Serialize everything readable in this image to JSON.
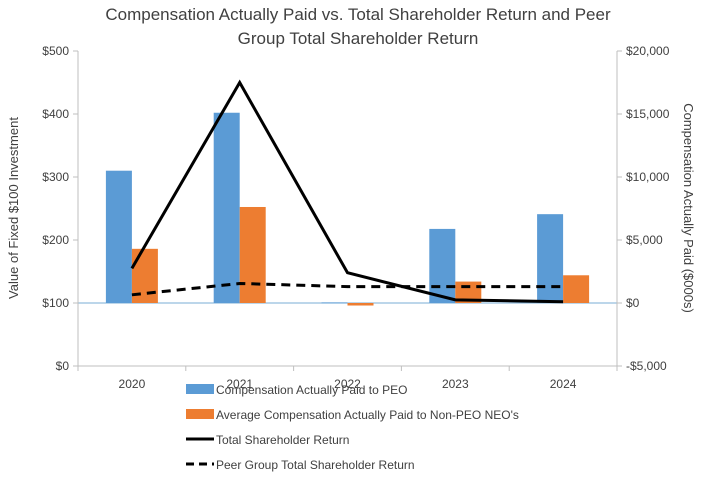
{
  "chart_data": {
    "type": "bar",
    "title": "Compensation Actually Paid vs. Total Shareholder Return and Peer Group Total Shareholder Return",
    "title_lines": [
      "Compensation Actually Paid vs. Total Shareholder Return and Peer",
      "Group Total Shareholder Return"
    ],
    "categories": [
      "2020",
      "2021",
      "2022",
      "2023",
      "2024"
    ],
    "y_left": {
      "label": "Value of Fixed $100 Investment",
      "lim": [
        0,
        500
      ],
      "ticks": [
        0,
        100,
        200,
        300,
        400,
        500
      ],
      "tick_labels": [
        "$0",
        "$100",
        "$200",
        "$300",
        "$400",
        "$500"
      ]
    },
    "y_right": {
      "label": "Compensation Actually Paid ($000s)",
      "lim": [
        -5000,
        20000
      ],
      "ticks": [
        -5000,
        0,
        5000,
        10000,
        15000,
        20000
      ],
      "tick_labels": [
        "-$5,000",
        "$0",
        "$5,000",
        "$10,000",
        "$15,000",
        "$20,000"
      ]
    },
    "series": [
      {
        "name": "Compensation Actually Paid to PEO",
        "kind": "bar",
        "axis": "right",
        "color": "#5B9BD5",
        "values": [
          10500,
          15100,
          50,
          5880,
          7050
        ]
      },
      {
        "name": "Average Compensation Actually Paid to Non-PEO NEO's",
        "kind": "bar",
        "axis": "right",
        "color": "#ED7D31",
        "values": [
          4300,
          7620,
          -200,
          1700,
          2200
        ]
      },
      {
        "name": "Total Shareholder Return",
        "kind": "line",
        "axis": "left",
        "color": "#000000",
        "dash": "solid",
        "values": [
          155,
          450,
          148,
          105,
          102
        ]
      },
      {
        "name": "Peer Group Total Shareholder Return",
        "kind": "line",
        "axis": "left",
        "color": "#000000",
        "dash": "dashed",
        "values": [
          113,
          131,
          126,
          126,
          126
        ]
      }
    ]
  }
}
